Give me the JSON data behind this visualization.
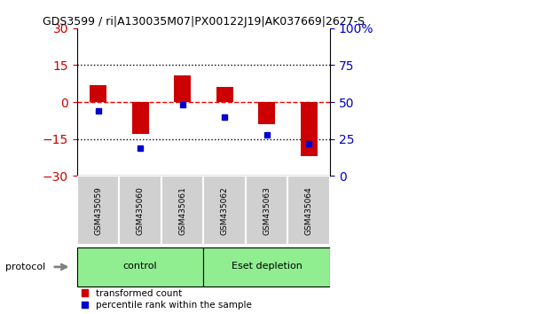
{
  "title": "GDS3599 / ri|A130035M07|PX00122J19|AK037669|2627-S",
  "categories": [
    "GSM435059",
    "GSM435060",
    "GSM435061",
    "GSM435062",
    "GSM435063",
    "GSM435064"
  ],
  "red_values": [
    7,
    -13,
    11,
    6,
    -9,
    -22
  ],
  "blue_values": [
    44,
    19,
    48,
    40,
    28,
    22
  ],
  "ylim_left": [
    -30,
    30
  ],
  "ylim_right": [
    0,
    100
  ],
  "yticks_left": [
    -30,
    -15,
    0,
    15,
    30
  ],
  "yticks_right": [
    0,
    25,
    50,
    75,
    100
  ],
  "yticklabels_right": [
    "0",
    "25",
    "50",
    "75",
    "100%"
  ],
  "red_color": "#cc0000",
  "blue_color": "#0000cc",
  "dotted_line_color": "black",
  "zero_line_color": "red",
  "control_label": "control",
  "eset_label": "Eset depletion",
  "group_color_light": "#90EE90",
  "sample_box_color": "#d0d0d0",
  "protocol_label": "protocol",
  "legend_red": "transformed count",
  "legend_blue": "percentile rank within the sample",
  "bar_width": 0.4,
  "fig_width": 6.2,
  "fig_height": 3.54
}
